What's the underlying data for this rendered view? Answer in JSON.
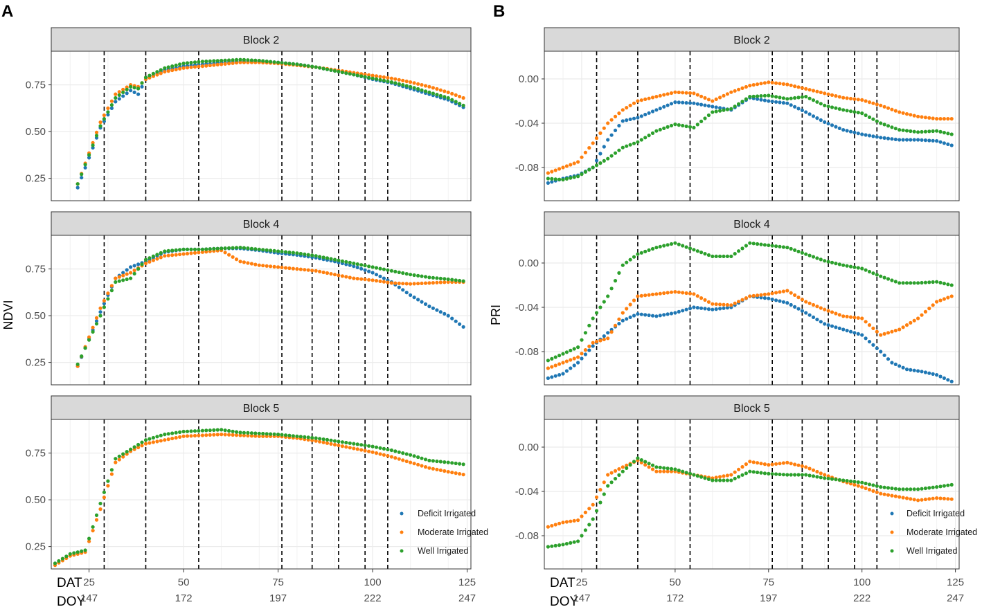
{
  "figure": {
    "colors": {
      "deficit": "#1f77b4",
      "moderate": "#ff7f0e",
      "well": "#2ca02c",
      "strip_bg": "#d9d9d9",
      "grid": "#ebebeb"
    },
    "legend": {
      "deficit": "Deficit Irrigated",
      "moderate": "Moderate Irrigated",
      "well": "Well Irrigated"
    },
    "x_axis": {
      "row1_label": "DAT",
      "row2_label": "DOY",
      "dat_ticks": [
        "25",
        "50",
        "75",
        "100",
        "125"
      ],
      "doy_ticks": [
        "147",
        "172",
        "197",
        "222",
        "247"
      ],
      "dat_range": [
        15,
        126
      ]
    },
    "event_lines_dat": [
      29,
      40,
      54,
      76,
      84,
      91,
      98,
      104
    ],
    "panels": [
      {
        "label": "A",
        "ylabel": "NDVI",
        "ylim": [
          0.13,
          0.93
        ],
        "yticks": [
          "0.25",
          "0.50",
          "0.75"
        ],
        "yvalues": [
          0.25,
          0.5,
          0.75
        ],
        "blocks": [
          "Block 2",
          "Block 4",
          "Block 5"
        ]
      },
      {
        "label": "B",
        "ylabel": "PRI",
        "ylim": [
          -0.11,
          0.025
        ],
        "yticks": [
          "0.00",
          "-0.04",
          "-0.08"
        ],
        "yvalues": [
          0.0,
          -0.04,
          -0.08
        ],
        "blocks": [
          "Block 2",
          "Block 4",
          "Block 5"
        ]
      }
    ]
  },
  "chart_data": [
    {
      "type": "scatter",
      "title": "Block 2",
      "panel": "A",
      "xlabel": "DAT",
      "ylabel": "NDVI",
      "ylim": [
        0.13,
        0.93
      ],
      "series": [
        {
          "name": "Deficit Irrigated",
          "x": [
            22,
            28,
            32,
            36,
            38,
            40,
            45,
            50,
            55,
            60,
            65,
            70,
            75,
            80,
            85,
            90,
            95,
            100,
            105,
            110,
            115,
            120,
            124
          ],
          "y": [
            0.2,
            0.52,
            0.66,
            0.72,
            0.7,
            0.78,
            0.83,
            0.85,
            0.86,
            0.87,
            0.875,
            0.875,
            0.87,
            0.86,
            0.845,
            0.825,
            0.805,
            0.78,
            0.76,
            0.73,
            0.7,
            0.67,
            0.63
          ]
        },
        {
          "name": "Moderate Irrigated",
          "x": [
            22,
            28,
            32,
            36,
            38,
            40,
            45,
            50,
            55,
            60,
            65,
            70,
            75,
            80,
            85,
            90,
            95,
            100,
            105,
            110,
            115,
            120,
            124
          ],
          "y": [
            0.22,
            0.55,
            0.7,
            0.75,
            0.74,
            0.78,
            0.82,
            0.84,
            0.85,
            0.86,
            0.87,
            0.87,
            0.865,
            0.855,
            0.845,
            0.83,
            0.815,
            0.8,
            0.785,
            0.765,
            0.74,
            0.71,
            0.68
          ]
        },
        {
          "name": "Well Irrigated",
          "x": [
            22,
            28,
            32,
            36,
            38,
            40,
            45,
            50,
            55,
            60,
            65,
            70,
            75,
            80,
            85,
            90,
            95,
            100,
            105,
            110,
            115,
            120,
            124
          ],
          "y": [
            0.22,
            0.53,
            0.68,
            0.74,
            0.73,
            0.79,
            0.84,
            0.865,
            0.875,
            0.88,
            0.885,
            0.88,
            0.87,
            0.86,
            0.845,
            0.825,
            0.805,
            0.785,
            0.765,
            0.74,
            0.71,
            0.68,
            0.64
          ]
        }
      ]
    },
    {
      "type": "scatter",
      "title": "Block 4",
      "panel": "A",
      "xlabel": "DAT",
      "ylabel": "NDVI",
      "ylim": [
        0.13,
        0.93
      ],
      "series": [
        {
          "name": "Deficit Irrigated",
          "x": [
            22,
            28,
            32,
            36,
            40,
            45,
            50,
            55,
            60,
            65,
            70,
            75,
            80,
            85,
            90,
            95,
            100,
            105,
            110,
            115,
            120,
            124
          ],
          "y": [
            0.23,
            0.52,
            0.7,
            0.76,
            0.79,
            0.84,
            0.855,
            0.855,
            0.86,
            0.86,
            0.85,
            0.835,
            0.825,
            0.81,
            0.79,
            0.765,
            0.73,
            0.68,
            0.61,
            0.55,
            0.5,
            0.44
          ]
        },
        {
          "name": "Moderate Irrigated",
          "x": [
            22,
            28,
            32,
            36,
            40,
            45,
            50,
            55,
            60,
            65,
            70,
            75,
            80,
            85,
            90,
            95,
            100,
            105,
            110,
            115,
            120,
            124
          ],
          "y": [
            0.23,
            0.54,
            0.7,
            0.73,
            0.78,
            0.82,
            0.83,
            0.84,
            0.85,
            0.79,
            0.77,
            0.76,
            0.75,
            0.74,
            0.72,
            0.7,
            0.69,
            0.675,
            0.67,
            0.675,
            0.68,
            0.68
          ]
        },
        {
          "name": "Well Irrigated",
          "x": [
            22,
            28,
            32,
            36,
            40,
            45,
            50,
            55,
            60,
            65,
            70,
            75,
            80,
            85,
            90,
            95,
            100,
            105,
            110,
            115,
            120,
            124
          ],
          "y": [
            0.24,
            0.5,
            0.68,
            0.7,
            0.8,
            0.845,
            0.855,
            0.855,
            0.86,
            0.865,
            0.855,
            0.845,
            0.835,
            0.82,
            0.8,
            0.78,
            0.76,
            0.74,
            0.72,
            0.705,
            0.695,
            0.685
          ]
        }
      ]
    },
    {
      "type": "scatter",
      "title": "Block 5",
      "panel": "A",
      "xlabel": "DAT",
      "ylabel": "NDVI",
      "ylim": [
        0.13,
        0.93
      ],
      "series": [
        {
          "name": "Moderate Irrigated",
          "x": [
            16,
            20,
            24,
            28,
            32,
            36,
            40,
            45,
            50,
            55,
            60,
            65,
            70,
            75,
            80,
            85,
            90,
            95,
            100,
            105,
            110,
            115,
            120,
            124
          ],
          "y": [
            0.15,
            0.2,
            0.22,
            0.45,
            0.7,
            0.76,
            0.8,
            0.82,
            0.84,
            0.845,
            0.85,
            0.845,
            0.84,
            0.84,
            0.83,
            0.815,
            0.795,
            0.775,
            0.755,
            0.73,
            0.7,
            0.67,
            0.65,
            0.635
          ]
        },
        {
          "name": "Well Irrigated",
          "x": [
            16,
            20,
            24,
            28,
            32,
            36,
            40,
            45,
            50,
            55,
            60,
            65,
            70,
            75,
            80,
            85,
            90,
            95,
            100,
            105,
            110,
            115,
            120,
            124
          ],
          "y": [
            0.16,
            0.21,
            0.23,
            0.48,
            0.72,
            0.77,
            0.82,
            0.85,
            0.865,
            0.87,
            0.875,
            0.86,
            0.855,
            0.85,
            0.84,
            0.83,
            0.815,
            0.8,
            0.785,
            0.765,
            0.74,
            0.71,
            0.7,
            0.69
          ]
        }
      ]
    },
    {
      "type": "scatter",
      "title": "Block 2",
      "panel": "B",
      "xlabel": "DAT",
      "ylabel": "PRI",
      "ylim": [
        -0.11,
        0.025
      ],
      "series": [
        {
          "name": "Deficit Irrigated",
          "x": [
            16,
            20,
            24,
            28,
            32,
            36,
            40,
            45,
            50,
            55,
            60,
            65,
            70,
            75,
            80,
            85,
            90,
            95,
            100,
            105,
            110,
            115,
            120,
            124
          ],
          "y": [
            -0.094,
            -0.09,
            -0.087,
            -0.08,
            -0.055,
            -0.038,
            -0.035,
            -0.028,
            -0.021,
            -0.022,
            -0.025,
            -0.028,
            -0.017,
            -0.02,
            -0.022,
            -0.03,
            -0.039,
            -0.046,
            -0.05,
            -0.053,
            -0.055,
            -0.055,
            -0.056,
            -0.06
          ]
        },
        {
          "name": "Moderate Irrigated",
          "x": [
            16,
            20,
            24,
            28,
            32,
            36,
            40,
            45,
            50,
            55,
            60,
            65,
            70,
            75,
            80,
            85,
            90,
            95,
            100,
            105,
            110,
            115,
            120,
            124
          ],
          "y": [
            -0.085,
            -0.08,
            -0.075,
            -0.058,
            -0.04,
            -0.028,
            -0.02,
            -0.016,
            -0.012,
            -0.013,
            -0.02,
            -0.012,
            -0.006,
            -0.003,
            -0.005,
            -0.009,
            -0.013,
            -0.017,
            -0.019,
            -0.024,
            -0.03,
            -0.034,
            -0.036,
            -0.036
          ]
        },
        {
          "name": "Well Irrigated",
          "x": [
            16,
            20,
            24,
            28,
            32,
            36,
            40,
            45,
            50,
            55,
            60,
            65,
            70,
            75,
            80,
            85,
            90,
            95,
            100,
            105,
            110,
            115,
            120,
            124
          ],
          "y": [
            -0.09,
            -0.091,
            -0.088,
            -0.08,
            -0.072,
            -0.062,
            -0.057,
            -0.047,
            -0.041,
            -0.044,
            -0.03,
            -0.027,
            -0.016,
            -0.015,
            -0.018,
            -0.016,
            -0.024,
            -0.028,
            -0.031,
            -0.04,
            -0.046,
            -0.048,
            -0.047,
            -0.05
          ]
        }
      ]
    },
    {
      "type": "scatter",
      "title": "Block 4",
      "panel": "B",
      "xlabel": "DAT",
      "ylabel": "PRI",
      "ylim": [
        -0.11,
        0.025
      ],
      "series": [
        {
          "name": "Deficit Irrigated",
          "x": [
            16,
            20,
            24,
            28,
            32,
            36,
            40,
            45,
            50,
            55,
            60,
            65,
            70,
            75,
            80,
            85,
            90,
            95,
            100,
            105,
            108,
            112,
            116,
            120,
            124
          ],
          "y": [
            -0.104,
            -0.1,
            -0.09,
            -0.075,
            -0.063,
            -0.052,
            -0.046,
            -0.048,
            -0.045,
            -0.04,
            -0.042,
            -0.04,
            -0.03,
            -0.032,
            -0.036,
            -0.045,
            -0.055,
            -0.06,
            -0.065,
            -0.08,
            -0.09,
            -0.096,
            -0.098,
            -0.101,
            -0.107
          ]
        },
        {
          "name": "Moderate Irrigated",
          "x": [
            16,
            20,
            24,
            28,
            32,
            36,
            40,
            45,
            50,
            55,
            60,
            65,
            70,
            75,
            80,
            85,
            90,
            95,
            100,
            105,
            110,
            115,
            120,
            124
          ],
          "y": [
            -0.095,
            -0.09,
            -0.085,
            -0.072,
            -0.068,
            -0.045,
            -0.03,
            -0.028,
            -0.026,
            -0.028,
            -0.037,
            -0.038,
            -0.03,
            -0.028,
            -0.025,
            -0.035,
            -0.042,
            -0.048,
            -0.05,
            -0.065,
            -0.06,
            -0.05,
            -0.035,
            -0.03
          ]
        },
        {
          "name": "Well Irrigated",
          "x": [
            16,
            20,
            24,
            28,
            32,
            36,
            40,
            45,
            50,
            55,
            60,
            65,
            70,
            75,
            80,
            85,
            90,
            95,
            100,
            105,
            110,
            115,
            120,
            124
          ],
          "y": [
            -0.088,
            -0.082,
            -0.076,
            -0.05,
            -0.03,
            -0.002,
            0.008,
            0.014,
            0.018,
            0.012,
            0.006,
            0.006,
            0.018,
            0.016,
            0.014,
            0.008,
            0.002,
            -0.002,
            -0.005,
            -0.012,
            -0.018,
            -0.018,
            -0.017,
            -0.02
          ]
        }
      ]
    },
    {
      "type": "scatter",
      "title": "Block 5",
      "panel": "B",
      "xlabel": "DAT",
      "ylabel": "PRI",
      "ylim": [
        -0.11,
        0.025
      ],
      "series": [
        {
          "name": "Moderate Irrigated",
          "x": [
            16,
            20,
            24,
            28,
            32,
            36,
            40,
            45,
            50,
            55,
            60,
            65,
            70,
            75,
            80,
            85,
            90,
            95,
            100,
            105,
            110,
            115,
            120,
            124
          ],
          "y": [
            -0.072,
            -0.068,
            -0.066,
            -0.052,
            -0.025,
            -0.018,
            -0.012,
            -0.022,
            -0.022,
            -0.025,
            -0.028,
            -0.025,
            -0.013,
            -0.016,
            -0.014,
            -0.018,
            -0.025,
            -0.031,
            -0.036,
            -0.042,
            -0.045,
            -0.048,
            -0.046,
            -0.047
          ]
        },
        {
          "name": "Well Irrigated",
          "x": [
            16,
            20,
            24,
            28,
            32,
            36,
            40,
            45,
            50,
            55,
            60,
            65,
            70,
            75,
            80,
            85,
            90,
            95,
            100,
            105,
            110,
            115,
            120,
            124
          ],
          "y": [
            -0.09,
            -0.088,
            -0.085,
            -0.065,
            -0.035,
            -0.022,
            -0.01,
            -0.018,
            -0.02,
            -0.025,
            -0.03,
            -0.03,
            -0.022,
            -0.024,
            -0.025,
            -0.025,
            -0.028,
            -0.03,
            -0.032,
            -0.036,
            -0.038,
            -0.038,
            -0.036,
            -0.034
          ]
        }
      ]
    }
  ]
}
